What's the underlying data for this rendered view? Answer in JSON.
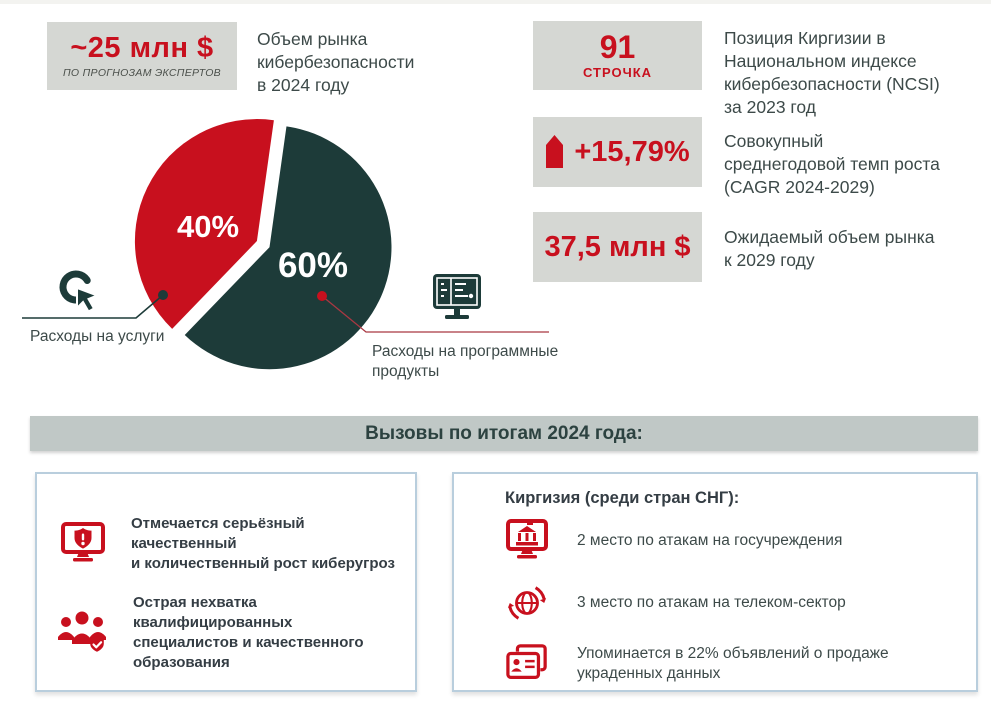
{
  "palette": {
    "red": "#c8101e",
    "dark_teal": "#1d3b39",
    "badge_gray": "#d5d7d3",
    "banner_gray": "#c0c8c6",
    "panel_border": "#b9cedd",
    "body_text": "#3d4a49",
    "leader_line_red": "#a93842"
  },
  "market": {
    "value": "~25 млн $",
    "note": "ПО ПРОГНОЗАМ ЭКСПЕРТОВ",
    "caption": "Объем рынка\nкибербезопасности\nв 2024 году"
  },
  "chart_data": {
    "type": "pie",
    "start_angle_deg": 82,
    "legend_position": "callout-labels",
    "slices": [
      {
        "label": "Расходы на услуги",
        "value": 40,
        "display": "40%",
        "color": "#c8101e"
      },
      {
        "label": "Расходы на программные\nпродукты",
        "value": 60,
        "display": "60%",
        "color": "#1d3b39"
      }
    ]
  },
  "stats": [
    {
      "value": "91",
      "unit": "СТРОЧКА",
      "desc": "Позиция Киргизии в\nНациональном индексе\nкибербезопасности (NCSI)\nза 2023 год"
    },
    {
      "value": "+15,79%",
      "icon": "growth-arrow",
      "desc": "Совокупный\nсреднегодовой темп роста\n(CAGR 2024-2029)"
    },
    {
      "value": "37,5 млн $",
      "desc": "Ожидаемый объем рынка\nк 2029 году"
    }
  ],
  "banner": {
    "title": "Вызовы по итогам 2024 года:"
  },
  "challenges": {
    "items": [
      {
        "icon": "monitor-shield-alert",
        "text": "Отмечается серьёзный\nкачественный\nи количественный рост киберугроз"
      },
      {
        "icon": "team-shield-check",
        "text": "Острая нехватка квалифицированных\nспециалистов и качественного\nобразования"
      }
    ]
  },
  "cis": {
    "title": "Киргизия (среди стран СНГ):",
    "items": [
      {
        "icon": "monitor-government",
        "text": "2 место по атакам на госучреждения"
      },
      {
        "icon": "globe-sync",
        "text": "3 место по атакам на телеком-сектор"
      },
      {
        "icon": "id-cards",
        "text": "Упоминается в 22% объявлений о продаже\nукраденных данных"
      }
    ]
  }
}
